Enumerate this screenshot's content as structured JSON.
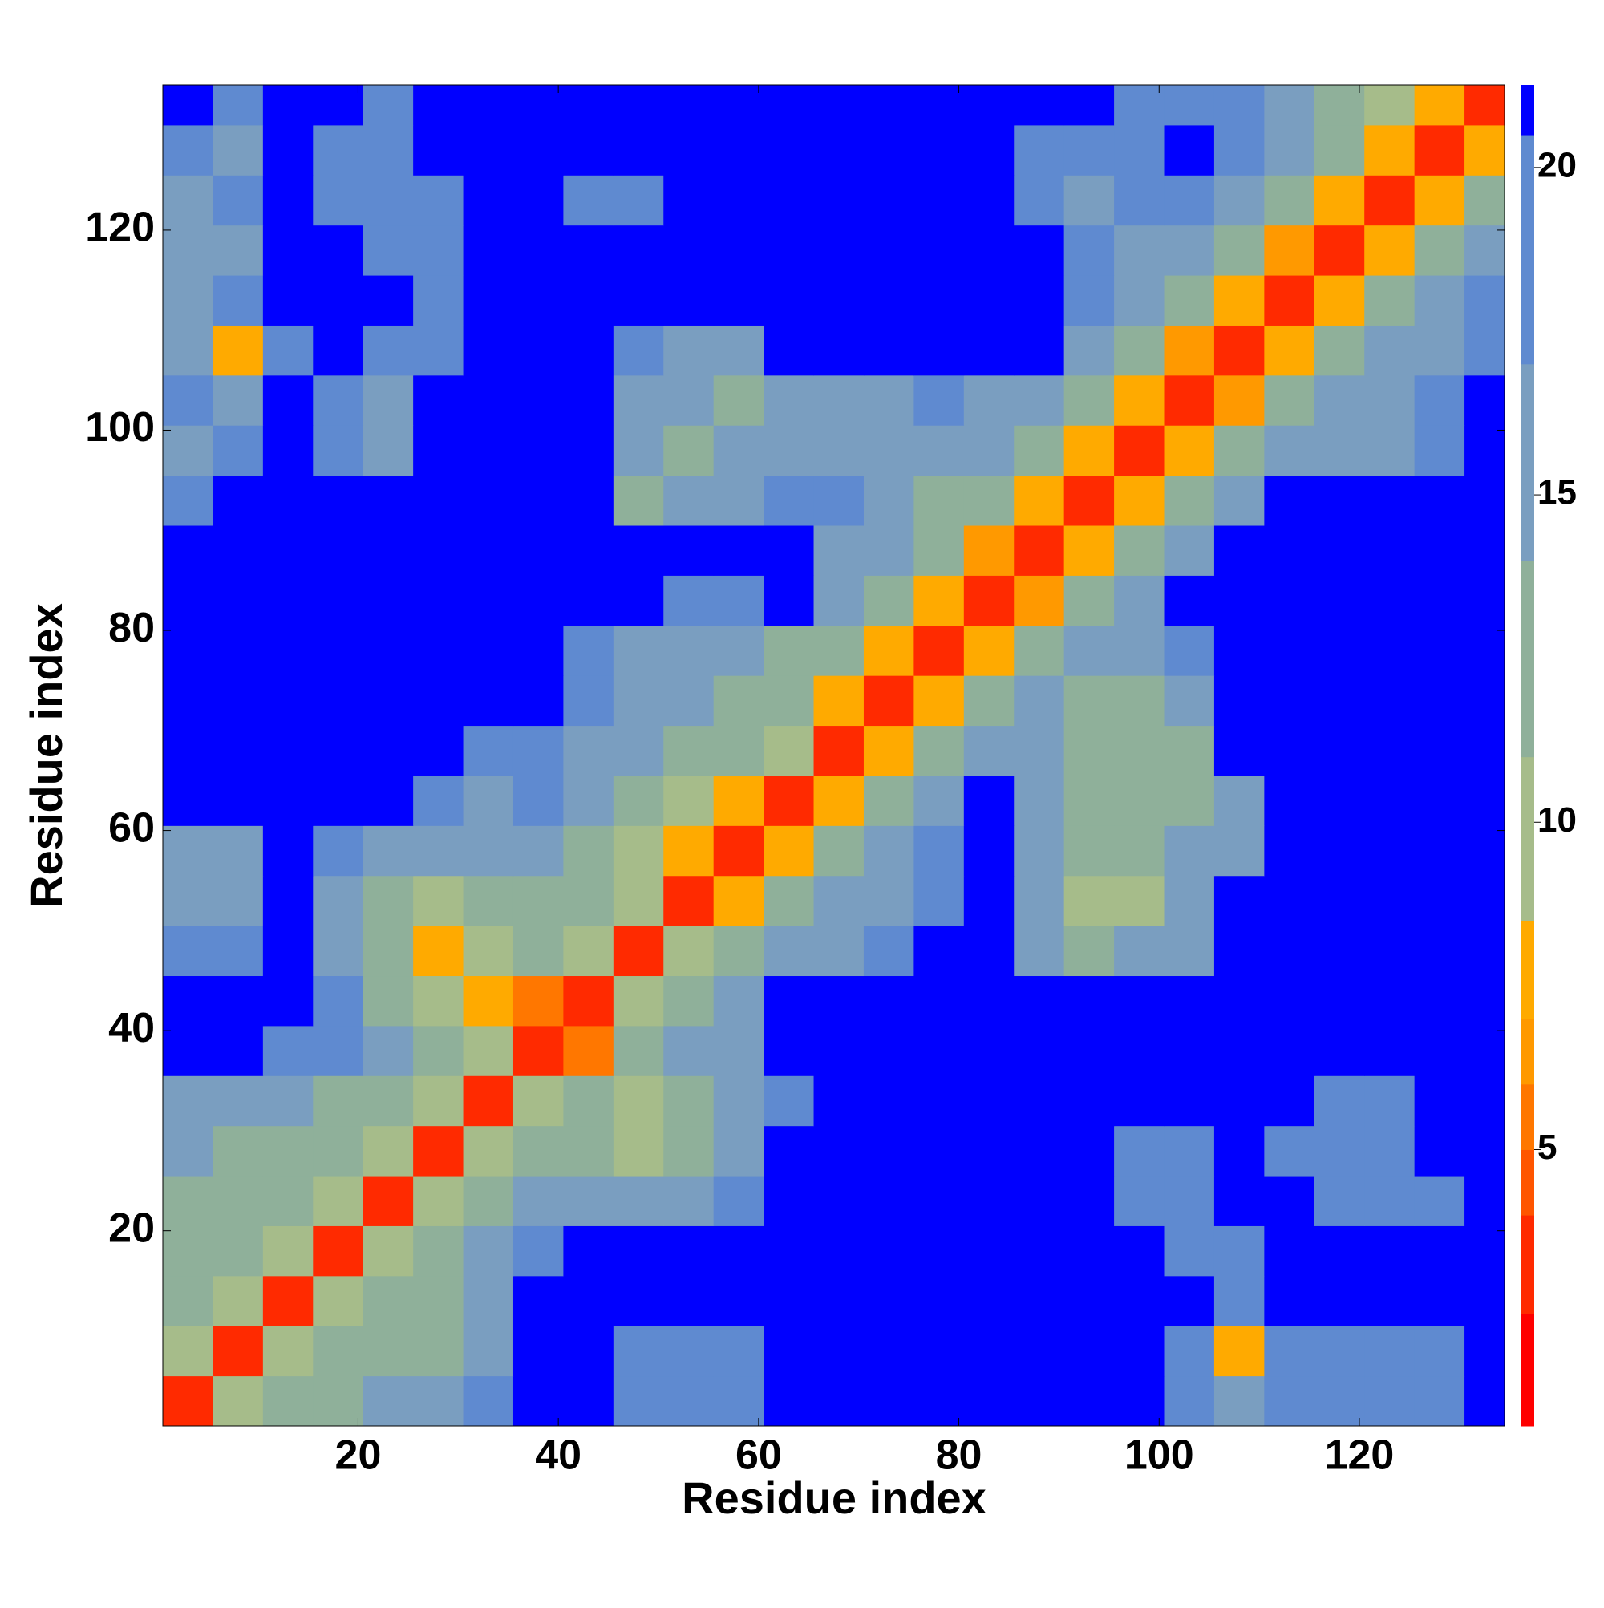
{
  "chart_data": {
    "type": "heatmap",
    "xlabel": "Residue index",
    "ylabel": "Residue index",
    "xlim": [
      0.5,
      134.5
    ],
    "ylim": [
      0.5,
      134.5
    ],
    "xticks": [
      20,
      40,
      60,
      80,
      100,
      120
    ],
    "yticks": [
      20,
      40,
      60,
      80,
      100,
      120
    ],
    "x_bins": [
      0.5,
      5.5,
      10.5,
      15.5,
      20.5,
      25.5,
      30.5,
      35.5,
      40.5,
      45.5,
      50.5,
      55.5,
      60.5,
      65.5,
      70.5,
      75.5,
      80.5,
      85.5,
      90.5,
      95.5,
      100.5,
      105.5,
      110.5,
      115.5,
      120.5,
      125.5,
      130.5,
      134.5
    ],
    "y_bins": [
      0.5,
      5.5,
      10.5,
      15.5,
      20.5,
      25.5,
      30.5,
      35.5,
      40.5,
      45.5,
      50.5,
      55.5,
      60.5,
      65.5,
      70.5,
      75.5,
      80.5,
      85.5,
      90.5,
      95.5,
      100.5,
      105.5,
      110.5,
      115.5,
      120.5,
      125.5,
      130.5,
      134.5
    ],
    "z": [
      [
        3,
        9,
        13,
        14,
        15,
        16,
        18,
        21,
        21,
        19,
        18,
        18,
        21,
        21,
        21,
        21,
        21,
        21,
        21,
        21,
        19,
        15,
        18,
        18,
        18,
        19,
        21
      ],
      [
        9,
        3,
        9,
        12,
        13,
        14,
        17,
        21,
        21,
        18,
        18,
        19,
        21,
        21,
        21,
        21,
        21,
        21,
        21,
        21,
        19,
        8,
        18,
        18,
        18,
        19,
        21
      ],
      [
        12,
        9,
        3,
        9,
        12,
        14,
        17,
        21,
        21,
        21,
        21,
        21,
        21,
        21,
        21,
        21,
        21,
        21,
        21,
        21,
        21,
        19,
        21,
        21,
        21,
        21,
        21
      ],
      [
        13,
        12,
        9,
        3,
        9,
        13,
        15,
        18,
        21,
        21,
        21,
        21,
        21,
        21,
        21,
        21,
        21,
        21,
        21,
        21,
        18,
        19,
        21,
        21,
        21,
        21,
        21
      ],
      [
        13,
        13,
        12,
        9,
        3,
        9,
        13,
        16,
        17,
        16,
        17,
        18,
        21,
        21,
        21,
        21,
        21,
        21,
        21,
        18,
        18,
        21,
        21,
        18,
        18,
        18,
        21
      ],
      [
        15,
        14,
        13,
        12,
        9,
        3,
        9,
        13,
        14,
        10,
        13,
        16,
        21,
        21,
        21,
        21,
        21,
        21,
        21,
        19,
        20,
        21,
        19,
        18,
        18,
        21,
        21
      ],
      [
        17,
        16,
        15,
        14,
        12,
        9,
        3,
        9,
        12,
        9,
        12,
        15,
        18,
        21,
        21,
        21,
        21,
        21,
        21,
        21,
        21,
        21,
        21,
        18,
        19,
        21,
        21
      ],
      [
        21,
        21,
        19,
        18,
        15,
        12,
        9,
        3,
        6,
        12,
        15,
        17,
        21,
        21,
        21,
        21,
        21,
        21,
        21,
        21,
        21,
        21,
        21,
        21,
        21,
        21,
        21
      ],
      [
        21,
        21,
        21,
        19,
        14,
        10,
        8,
        6,
        3,
        9,
        14,
        17,
        21,
        21,
        21,
        21,
        21,
        21,
        21,
        21,
        21,
        21,
        21,
        21,
        21,
        21,
        21
      ],
      [
        18,
        18,
        21,
        17,
        14,
        8,
        11,
        12,
        9,
        3,
        9,
        13,
        15,
        17,
        18,
        21,
        21,
        16,
        14,
        15,
        17,
        21,
        21,
        21,
        21,
        21,
        21
      ],
      [
        17,
        17,
        21,
        16,
        13,
        10,
        13,
        14,
        12,
        9,
        3,
        8,
        13,
        15,
        16,
        18,
        21,
        15,
        11,
        10,
        15,
        21,
        21,
        21,
        21,
        21,
        21
      ],
      [
        16,
        17,
        21,
        18,
        16,
        15,
        15,
        16,
        14,
        11,
        8,
        3,
        8,
        12,
        15,
        18,
        21,
        15,
        14,
        14,
        16,
        17,
        21,
        21,
        21,
        21,
        21
      ],
      [
        21,
        21,
        21,
        21,
        21,
        18,
        17,
        18,
        15,
        13,
        11,
        8,
        3,
        8,
        13,
        16,
        21,
        16,
        14,
        12,
        13,
        17,
        21,
        21,
        21,
        21,
        21
      ],
      [
        21,
        21,
        21,
        21,
        21,
        21,
        19,
        19,
        16,
        15,
        14,
        12,
        9,
        3,
        8,
        12,
        17,
        16,
        14,
        12,
        14,
        21,
        21,
        21,
        21,
        21,
        21
      ],
      [
        21,
        21,
        21,
        21,
        21,
        21,
        21,
        21,
        18,
        16,
        15,
        14,
        12,
        8,
        3,
        8,
        12,
        16,
        14,
        14,
        16,
        21,
        21,
        21,
        21,
        21,
        21
      ],
      [
        21,
        21,
        21,
        21,
        21,
        21,
        21,
        21,
        18,
        17,
        16,
        16,
        14,
        12,
        8,
        3,
        8,
        13,
        16,
        17,
        19,
        21,
        21,
        21,
        21,
        21,
        21
      ],
      [
        21,
        21,
        21,
        21,
        21,
        21,
        21,
        21,
        21,
        21,
        18,
        19,
        21,
        15,
        12,
        8,
        3,
        7,
        12,
        16,
        21,
        21,
        21,
        21,
        21,
        21,
        21
      ],
      [
        21,
        21,
        21,
        21,
        21,
        21,
        21,
        21,
        21,
        21,
        21,
        21,
        21,
        17,
        15,
        12,
        7,
        3,
        8,
        12,
        17,
        21,
        21,
        21,
        21,
        21,
        21
      ],
      [
        19,
        21,
        21,
        21,
        21,
        21,
        21,
        21,
        21,
        13,
        15,
        16,
        19,
        18,
        16,
        14,
        12,
        8,
        3,
        8,
        13,
        17,
        21,
        21,
        21,
        21,
        21
      ],
      [
        17,
        18,
        21,
        18,
        17,
        21,
        21,
        21,
        21,
        15,
        14,
        15,
        15,
        15,
        16,
        17,
        15,
        12,
        8,
        3,
        8,
        13,
        16,
        17,
        17,
        18,
        21
      ],
      [
        18,
        17,
        21,
        18,
        16,
        21,
        21,
        21,
        21,
        16,
        15,
        14,
        15,
        15,
        17,
        18,
        17,
        15,
        12,
        8,
        3,
        7,
        13,
        16,
        17,
        18,
        21
      ],
      [
        17,
        8,
        19,
        21,
        18,
        19,
        21,
        21,
        21,
        18,
        17,
        17,
        21,
        21,
        21,
        21,
        21,
        21,
        16,
        12,
        7,
        3,
        8,
        13,
        16,
        17,
        18
      ],
      [
        17,
        18,
        21,
        21,
        21,
        19,
        21,
        21,
        21,
        21,
        21,
        21,
        21,
        21,
        21,
        21,
        21,
        21,
        19,
        17,
        13,
        8,
        3,
        8,
        13,
        16,
        18
      ],
      [
        17,
        17,
        21,
        21,
        18,
        19,
        21,
        21,
        21,
        21,
        21,
        21,
        21,
        21,
        21,
        21,
        21,
        21,
        18,
        17,
        17,
        12,
        7,
        3,
        8,
        12,
        16
      ],
      [
        17,
        18,
        21,
        19,
        18,
        18,
        21,
        21,
        19,
        20,
        21,
        21,
        21,
        21,
        21,
        21,
        21,
        18,
        17,
        18,
        19,
        15,
        12,
        8,
        3,
        8,
        12
      ],
      [
        18,
        17,
        21,
        19,
        19,
        21,
        21,
        21,
        21,
        21,
        21,
        21,
        21,
        21,
        21,
        21,
        21,
        19,
        18,
        18,
        21,
        18,
        15,
        12,
        8,
        3,
        8
      ],
      [
        21,
        19,
        21,
        21,
        19,
        21,
        21,
        21,
        21,
        21,
        21,
        21,
        21,
        21,
        21,
        21,
        21,
        21,
        21,
        19,
        19,
        19,
        17,
        14,
        11,
        8,
        3
      ]
    ],
    "colorbar": {
      "clim": [
        0.78,
        21.26
      ],
      "ticks": [
        5,
        10,
        15,
        20
      ],
      "levels": [
        0.78,
        2.5,
        4,
        5,
        6,
        7,
        8.5,
        11,
        14,
        17,
        20.5,
        21.26
      ],
      "colors": [
        "#ff0000",
        "#ff2a00",
        "#ff5500",
        "#ff7700",
        "#ff9900",
        "#ffaa00",
        "#a6bc8a",
        "#8fb09a",
        "#7a9ec0",
        "#5f8ad0",
        "#0000ff"
      ]
    }
  }
}
